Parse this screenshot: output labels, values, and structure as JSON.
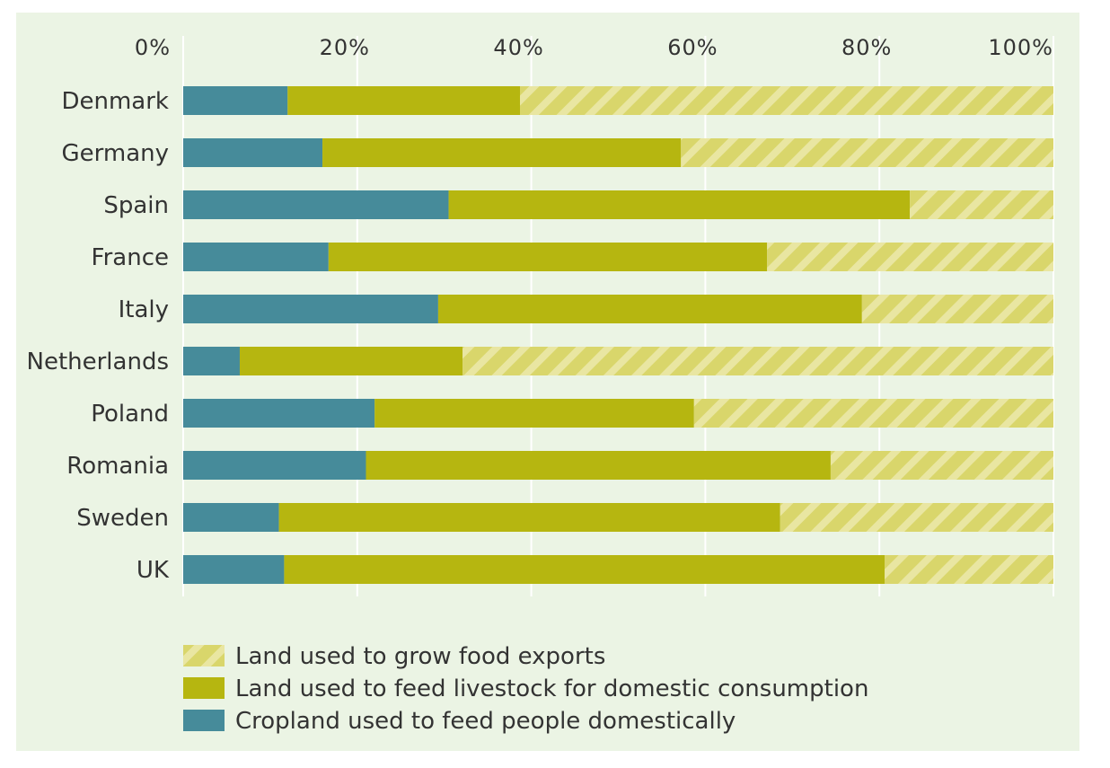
{
  "chart_data": {
    "type": "bar",
    "orientation": "horizontal",
    "stacked": true,
    "categories": [
      "Denmark",
      "Germany",
      "Spain",
      "France",
      "Italy",
      "Netherlands",
      "Poland",
      "Romania",
      "Sweden",
      "UK"
    ],
    "series": [
      {
        "name": "Cropland used to feed people domestically",
        "color": "#468b9a",
        "values": [
          12,
          16,
          30.5,
          16.7,
          29.3,
          6.5,
          22,
          21,
          11,
          11.6
        ]
      },
      {
        "name": "Land used to feed livestock for domestic consumption",
        "color": "#b6b610",
        "values": [
          26.7,
          41.2,
          53,
          50.4,
          48.7,
          25.6,
          36.7,
          53.4,
          57.6,
          69
        ]
      },
      {
        "name": "Land used to grow food exports",
        "color": "#d9d66b",
        "pattern": "hatched",
        "values": [
          61.3,
          42.8,
          16.5,
          32.9,
          22,
          67.9,
          41.3,
          25.6,
          31.4,
          19.4
        ]
      }
    ],
    "xlim": [
      0,
      100
    ],
    "x_ticks": [
      "0%",
      "20%",
      "40%",
      "60%",
      "80%",
      "100%"
    ],
    "grid": true,
    "legend_position": "bottom"
  },
  "legend": [
    {
      "label": "Land used to grow food exports",
      "series_index": 2
    },
    {
      "label": "Land used to feed livestock for domestic consumption",
      "series_index": 1
    },
    {
      "label": "Cropland used to feed people domestically",
      "series_index": 0
    }
  ],
  "colors": {
    "background": "#ebf4e4",
    "grid": "#ffffff",
    "text": "#333333",
    "hatch_light": "#e9e6a2"
  }
}
